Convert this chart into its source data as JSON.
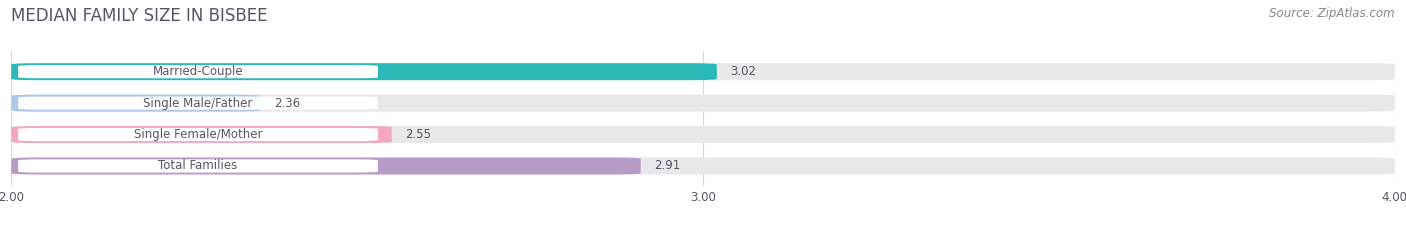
{
  "title": "MEDIAN FAMILY SIZE IN BISBEE",
  "source": "Source: ZipAtlas.com",
  "categories": [
    "Married-Couple",
    "Single Male/Father",
    "Single Female/Mother",
    "Total Families"
  ],
  "values": [
    3.02,
    2.36,
    2.55,
    2.91
  ],
  "colors": [
    "#2ab8b8",
    "#aec6e8",
    "#f4a7c0",
    "#b89cc8"
  ],
  "xlim": [
    2.0,
    4.0
  ],
  "xticks": [
    2.0,
    3.0,
    4.0
  ],
  "bar_height": 0.54,
  "background_color": "#ffffff",
  "bar_bg_color": "#e8e8ea",
  "title_fontsize": 12,
  "label_fontsize": 8.5,
  "value_fontsize": 8.5,
  "source_fontsize": 8.5,
  "title_color": "#555566",
  "label_color": "#555566",
  "value_color": "#555566",
  "source_color": "#888888"
}
